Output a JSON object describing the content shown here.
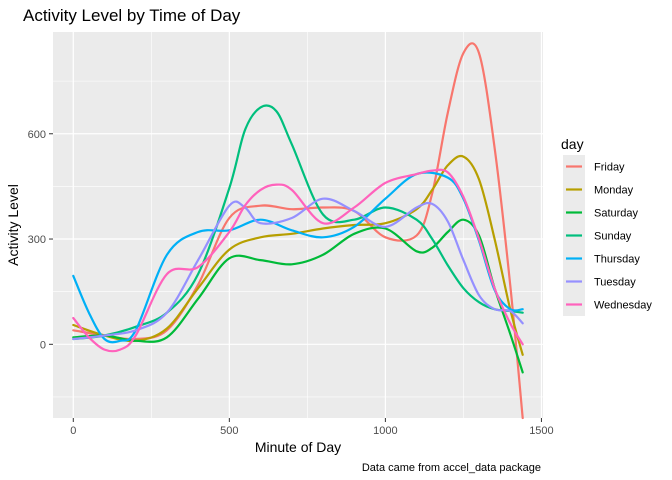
{
  "chart_data": {
    "type": "line",
    "title": "Activity Level by Time of Day",
    "xlabel": "Minute of Day",
    "ylabel": "Activity Level",
    "caption": "Data came from accel_data package",
    "xlim": [
      -65,
      1505
    ],
    "ylim": [
      -210,
      890
    ],
    "x_ticks": [
      0,
      500,
      1000,
      1500
    ],
    "y_ticks": [
      0,
      300,
      600
    ],
    "grid": true,
    "legend": {
      "title": "day",
      "position": "right"
    },
    "series": [
      {
        "name": "Friday",
        "color": "#F8766D",
        "x": [
          0,
          100,
          200,
          300,
          400,
          500,
          600,
          700,
          800,
          900,
          1000,
          1100,
          1150,
          1200,
          1250,
          1300,
          1350,
          1400,
          1440
        ],
        "y": [
          40,
          25,
          15,
          40,
          170,
          360,
          395,
          385,
          390,
          380,
          305,
          310,
          430,
          660,
          830,
          830,
          560,
          170,
          -210
        ]
      },
      {
        "name": "Monday",
        "color": "#B79F00",
        "x": [
          0,
          100,
          200,
          300,
          400,
          500,
          600,
          700,
          800,
          900,
          1000,
          1100,
          1150,
          1200,
          1250,
          1300,
          1350,
          1400,
          1440
        ],
        "y": [
          55,
          25,
          10,
          45,
          160,
          270,
          305,
          315,
          330,
          340,
          345,
          385,
          440,
          510,
          535,
          470,
          300,
          100,
          -30
        ]
      },
      {
        "name": "Saturday",
        "color": "#00BA38",
        "x": [
          0,
          100,
          200,
          300,
          400,
          500,
          600,
          700,
          800,
          900,
          1000,
          1100,
          1150,
          1200,
          1250,
          1300,
          1350,
          1400,
          1440
        ],
        "y": [
          20,
          25,
          10,
          20,
          130,
          245,
          240,
          228,
          255,
          315,
          330,
          265,
          275,
          320,
          355,
          310,
          160,
          30,
          -80
        ]
      },
      {
        "name": "Sunday",
        "color": "#00BF7D",
        "x": [
          0,
          100,
          200,
          300,
          400,
          500,
          550,
          600,
          650,
          700,
          800,
          900,
          1000,
          1100,
          1150,
          1200,
          1250,
          1300,
          1350,
          1400,
          1440
        ],
        "y": [
          15,
          25,
          50,
          90,
          200,
          445,
          610,
          675,
          665,
          570,
          370,
          355,
          390,
          355,
          300,
          225,
          160,
          120,
          100,
          95,
          90
        ]
      },
      {
        "name": "Thursday",
        "color": "#00B0F6",
        "x": [
          0,
          50,
          100,
          150,
          200,
          300,
          400,
          500,
          600,
          700,
          800,
          900,
          1000,
          1100,
          1200,
          1250,
          1300,
          1350,
          1400,
          1440
        ],
        "y": [
          195,
          90,
          15,
          10,
          40,
          255,
          320,
          325,
          355,
          325,
          305,
          335,
          415,
          485,
          475,
          415,
          295,
          155,
          100,
          100
        ]
      },
      {
        "name": "Tuesday",
        "color": "#9590FF",
        "x": [
          0,
          100,
          200,
          300,
          400,
          500,
          550,
          600,
          700,
          800,
          900,
          1000,
          1100,
          1150,
          1200,
          1250,
          1300,
          1350,
          1400,
          1440
        ],
        "y": [
          15,
          25,
          40,
          90,
          240,
          395,
          390,
          345,
          360,
          415,
          380,
          335,
          390,
          400,
          350,
          240,
          140,
          100,
          95,
          60
        ]
      },
      {
        "name": "Wednesday",
        "color": "#FF62BC",
        "x": [
          0,
          50,
          100,
          150,
          200,
          300,
          400,
          500,
          550,
          600,
          650,
          700,
          800,
          900,
          1000,
          1100,
          1150,
          1200,
          1250,
          1300,
          1350,
          1400,
          1440
        ],
        "y": [
          75,
          20,
          -15,
          -15,
          25,
          200,
          220,
          320,
          395,
          440,
          455,
          440,
          345,
          390,
          460,
          485,
          495,
          490,
          420,
          300,
          160,
          60,
          0
        ]
      }
    ]
  }
}
